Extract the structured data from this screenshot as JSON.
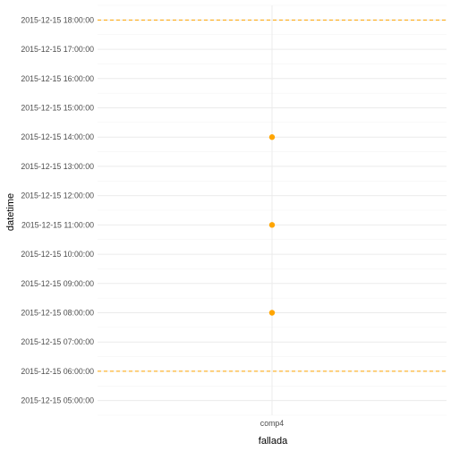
{
  "chart_data": {
    "type": "scatter",
    "xlabel": "fallada",
    "ylabel": "datetime",
    "categories": [
      "comp4"
    ],
    "y_ticks": [
      "2015-12-15 05:00:00",
      "2015-12-15 06:00:00",
      "2015-12-15 07:00:00",
      "2015-12-15 08:00:00",
      "2015-12-15 09:00:00",
      "2015-12-15 10:00:00",
      "2015-12-15 11:00:00",
      "2015-12-15 12:00:00",
      "2015-12-15 13:00:00",
      "2015-12-15 14:00:00",
      "2015-12-15 15:00:00",
      "2015-12-15 16:00:00",
      "2015-12-15 17:00:00",
      "2015-12-15 18:00:00"
    ],
    "ylim": [
      "2015-12-15 04:30:00",
      "2015-12-15 18:30:00"
    ],
    "points": [
      {
        "x": "comp4",
        "y": "2015-12-15 08:00:00"
      },
      {
        "x": "comp4",
        "y": "2015-12-15 11:00:00"
      },
      {
        "x": "comp4",
        "y": "2015-12-15 14:00:00"
      }
    ],
    "reference_lines": [
      {
        "y": "2015-12-15 06:00:00",
        "style": "dashed"
      },
      {
        "y": "2015-12-15 18:00:00",
        "style": "dashed"
      }
    ],
    "grid": true,
    "legend": "none",
    "colors": {
      "point": "#FFA500",
      "reference_line": "#FFA500",
      "grid_major": "#EBEBEB",
      "grid_minor": "#F4F4F4"
    }
  }
}
